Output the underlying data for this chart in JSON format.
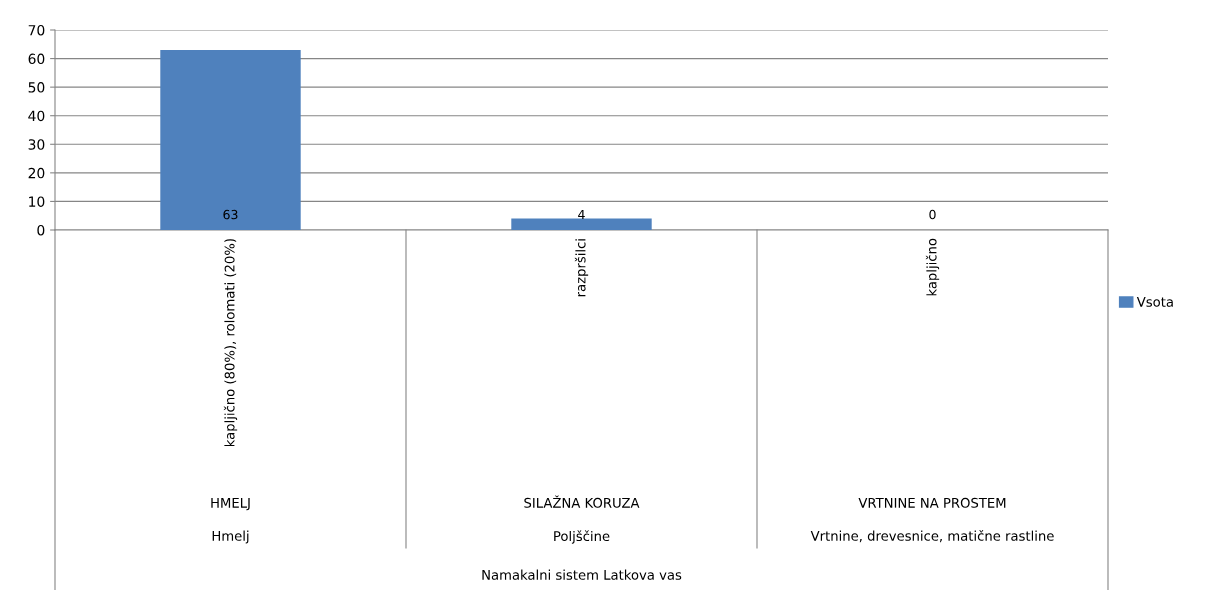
{
  "chart_data": {
    "type": "bar",
    "categories": [
      "kapljično (80%), rolomati (20%)",
      "razpršilci",
      "kapljično"
    ],
    "series": [
      {
        "name": "Vsota",
        "color": "#4f81bd",
        "values": [
          63,
          4,
          0
        ]
      }
    ],
    "ylim": [
      0,
      70
    ],
    "yticks": [
      0,
      10,
      20,
      30,
      40,
      50,
      60,
      70
    ],
    "grid": "y",
    "legend": "right",
    "data_labels": true,
    "annotations": [
      "HMELJ",
      "SILAŽNA KORUZA",
      "VRTNINE NA PROSTEM",
      "Hmelj",
      "Poljščine",
      "Vrtnine, drevesnice, matične rastline",
      "Namakalni sistem Latkova vas"
    ]
  }
}
